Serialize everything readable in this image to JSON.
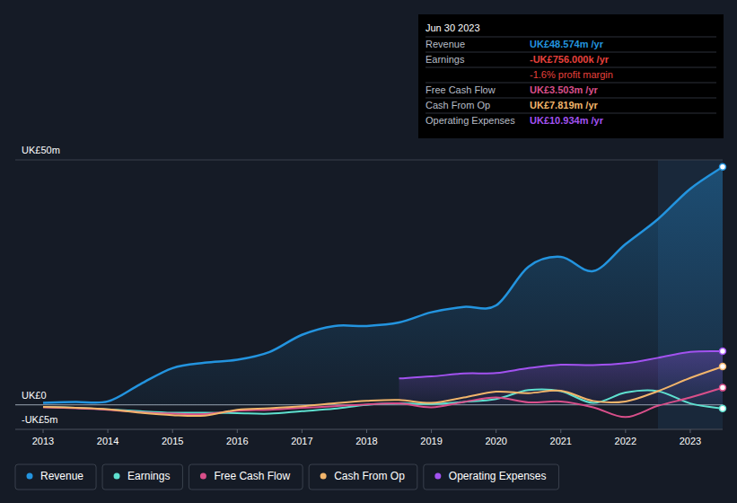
{
  "chart_data": {
    "type": "line",
    "x": [
      2013,
      2013.5,
      2014,
      2014.5,
      2015,
      2015.5,
      2016,
      2016.5,
      2017,
      2017.5,
      2018,
      2018.5,
      2019,
      2019.5,
      2020,
      2020.5,
      2021,
      2021.5,
      2022,
      2022.5,
      2023,
      2023.5
    ],
    "xlim": [
      2012.57,
      2023.5
    ],
    "xticks": [
      2013,
      2014,
      2015,
      2016,
      2017,
      2018,
      2019,
      2020,
      2021,
      2022,
      2023
    ],
    "ylim": [
      -5,
      50
    ],
    "yticks": [
      {
        "value": 50,
        "label": "UK£50m"
      },
      {
        "value": 0,
        "label": "UK£0"
      },
      {
        "value": -5,
        "label": "-UK£5m"
      }
    ],
    "grid": true,
    "legend": "bottom",
    "highlight_x": [
      2022.5,
      2023.5
    ],
    "series": [
      {
        "name": "Revenue",
        "color": "#2394df",
        "type": "area",
        "values": [
          0.4,
          0.6,
          0.7,
          4.2,
          7.5,
          8.6,
          9.2,
          10.8,
          14.3,
          16.1,
          16.1,
          16.8,
          18.9,
          20,
          20.3,
          28.2,
          30.2,
          27.3,
          32.8,
          37.9,
          44.1,
          48.574
        ]
      },
      {
        "name": "Earnings",
        "color": "#5ee0cf",
        "type": "line",
        "values": [
          -0.4,
          -0.6,
          -0.9,
          -1.3,
          -1.6,
          -1.6,
          -1.7,
          -1.8,
          -1.3,
          -0.8,
          0.0,
          0.3,
          0.2,
          0.6,
          1.2,
          3.0,
          2.8,
          0.4,
          2.5,
          2.8,
          0.3,
          -0.756
        ]
      },
      {
        "name": "Free Cash Flow",
        "color": "#d94f8a",
        "type": "line",
        "values": [
          -0.5,
          -0.7,
          -1.0,
          -1.5,
          -1.8,
          -1.9,
          -1.2,
          -1.0,
          -0.6,
          -0.3,
          0.1,
          0.3,
          -0.5,
          0.6,
          1.5,
          0.5,
          0.7,
          -0.5,
          -2.5,
          -0.2,
          1.5,
          3.503
        ]
      },
      {
        "name": "Cash From Op",
        "color": "#f2b56b",
        "type": "line",
        "values": [
          -0.4,
          -0.6,
          -0.9,
          -1.6,
          -2.1,
          -2.2,
          -1.0,
          -0.7,
          -0.3,
          0.3,
          0.8,
          1.0,
          0.4,
          1.5,
          2.7,
          2.4,
          2.9,
          0.8,
          0.7,
          2.8,
          5.5,
          7.819
        ]
      },
      {
        "name": "Operating Expenses",
        "color": "#a252f0",
        "type": "area",
        "values": [
          null,
          null,
          null,
          null,
          null,
          null,
          null,
          null,
          null,
          null,
          null,
          5.4,
          5.8,
          6.4,
          6.5,
          7.5,
          8.2,
          8.1,
          8.5,
          9.6,
          10.8,
          10.934
        ]
      }
    ],
    "tooltip": {
      "title": "Jun 30 2023",
      "rows": [
        {
          "label": "Revenue",
          "value": "UK£48.574m /yr",
          "color": "#2394df"
        },
        {
          "label": "Earnings",
          "value": "-UK£756.000k /yr",
          "color": "#e8413c"
        },
        {
          "label": "",
          "value": "-1.6% profit margin",
          "color": "#e8413c"
        },
        {
          "label": "Free Cash Flow",
          "value": "UK£3.503m /yr",
          "color": "#d94f8a"
        },
        {
          "label": "Cash From Op",
          "value": "UK£7.819m /yr",
          "color": "#f2b56b"
        },
        {
          "label": "Operating Expenses",
          "value": "UK£10.934m /yr",
          "color": "#a252f0"
        }
      ]
    }
  }
}
